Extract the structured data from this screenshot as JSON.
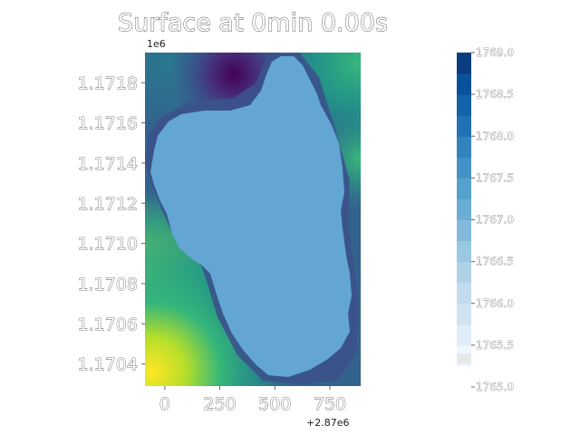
{
  "chart_data": {
    "type": "heatmap",
    "title": "Surface at 0min 0.00s",
    "x_ticks": [
      "0",
      "250",
      "500",
      "750"
    ],
    "x_tick_values": [
      0,
      250,
      500,
      750
    ],
    "x_offset_label": "+2.87e6",
    "xlim": [
      -90,
      890
    ],
    "y_ticks": [
      "1.1704",
      "1.1706",
      "1.1708",
      "1.1710",
      "1.1712",
      "1.1714",
      "1.1716",
      "1.1718"
    ],
    "y_tick_values": [
      1.1704,
      1.1706,
      1.1708,
      1.171,
      1.1712,
      1.1714,
      1.1716,
      1.1718
    ],
    "y_offset_label": "1e6",
    "ylim": [
      1.17029,
      1.17195
    ],
    "colorbar": {
      "ticks": [
        "1765.0",
        "1765.5",
        "1766.0",
        "1766.5",
        "1767.0",
        "1767.5",
        "1768.0",
        "1768.5",
        "1769.0"
      ],
      "tick_values": [
        1765.0,
        1765.5,
        1766.0,
        1766.5,
        1767.0,
        1767.5,
        1768.0,
        1768.5,
        1769.0
      ],
      "range": [
        1765.0,
        1769.0
      ],
      "colormap": "Blues"
    },
    "water_surface_value": 1767.45,
    "terrain_colormap": "viridis"
  }
}
